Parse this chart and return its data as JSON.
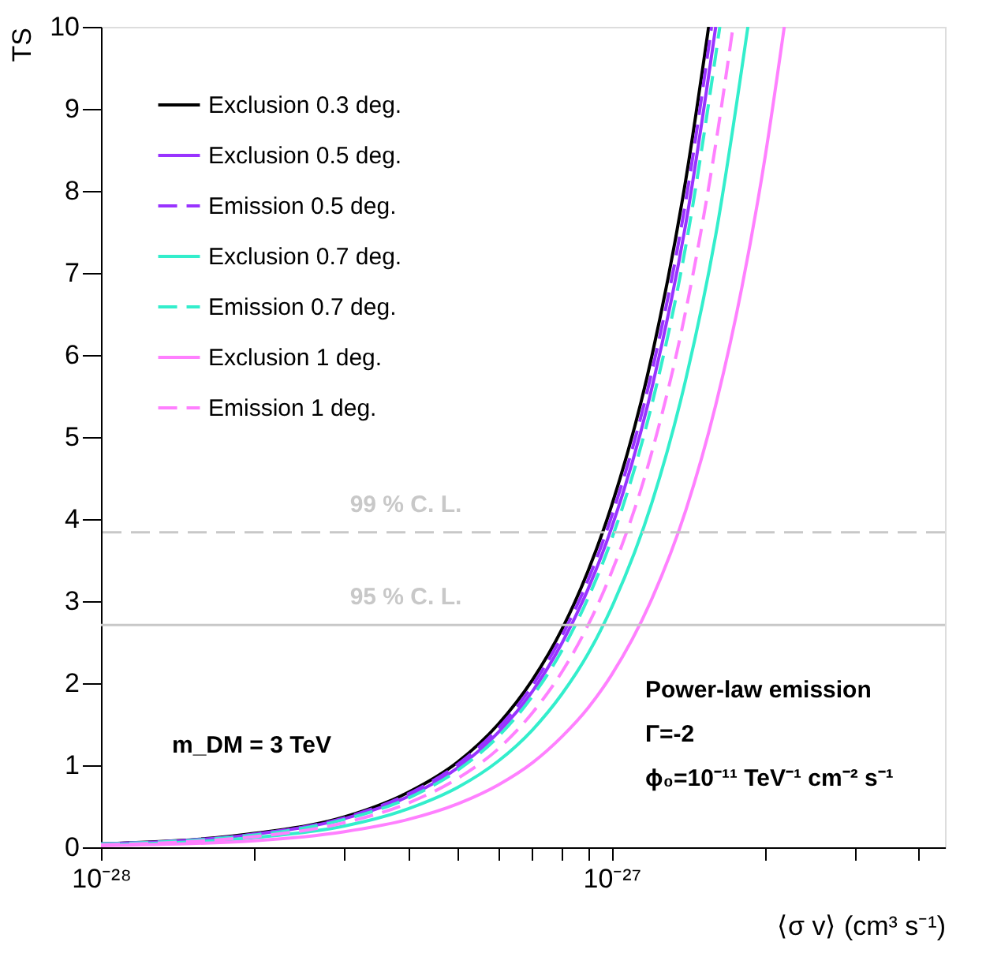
{
  "chart_data": {
    "type": "line",
    "xlabel": "⟨σ v⟩ (cm³ s⁻¹)",
    "ylabel": "TS",
    "log": "x",
    "grid": false,
    "legend": "top left",
    "xlim": [
      1e-28,
      4.5e-27
    ],
    "ylim": [
      0,
      10
    ],
    "xticks": [
      {
        "value": 1e-28,
        "label": "10⁻²⁸"
      },
      {
        "value": 2e-28,
        "label": null
      },
      {
        "value": 3e-28,
        "label": null
      },
      {
        "value": 4e-28,
        "label": null
      },
      {
        "value": 5e-28,
        "label": null
      },
      {
        "value": 6e-28,
        "label": null
      },
      {
        "value": 7e-28,
        "label": null
      },
      {
        "value": 8e-28,
        "label": null
      },
      {
        "value": 9e-28,
        "label": null
      },
      {
        "value": 1e-27,
        "label": "10⁻²⁷"
      },
      {
        "value": 2e-27,
        "label": null
      },
      {
        "value": 3e-27,
        "label": null
      },
      {
        "value": 4e-27,
        "label": null
      }
    ],
    "yticks": [
      0,
      1,
      2,
      3,
      4,
      5,
      6,
      7,
      8,
      9,
      10
    ],
    "series": [
      {
        "name": "Exclusion 0.3 deg.",
        "color": "#000000",
        "line_style": "solid",
        "x": [
          1e-28,
          2e-28,
          3e-28,
          4e-28,
          5e-28,
          6e-28,
          7e-28,
          8e-28,
          9e-28,
          1e-27,
          1.2e-27,
          1.4e-27,
          1.55e-27
        ],
        "values": [
          0.04,
          0.17,
          0.37,
          0.67,
          1.04,
          1.5,
          2.04,
          2.66,
          3.37,
          4.16,
          5.99,
          8.16,
          10
        ]
      },
      {
        "name": "Exclusion 0.5 deg.",
        "color": "#9933ff",
        "line_style": "solid",
        "x": [
          1e-28,
          2e-28,
          3e-28,
          4e-28,
          5e-28,
          6e-28,
          7e-28,
          8e-28,
          9e-28,
          1e-27,
          1.2e-27,
          1.4e-27,
          1.6e-27
        ],
        "values": [
          0.04,
          0.16,
          0.35,
          0.62,
          0.97,
          1.4,
          1.9,
          2.49,
          3.15,
          3.89,
          5.6,
          7.62,
          10
        ]
      },
      {
        "name": "Emission 0.5 deg.",
        "color": "#9933ff",
        "line_style": "dashed",
        "x": [
          1e-28,
          2e-28,
          3e-28,
          4e-28,
          5e-28,
          6e-28,
          7e-28,
          8e-28,
          9e-28,
          1e-27,
          1.2e-27,
          1.4e-27,
          1.57e-27
        ],
        "values": [
          0.04,
          0.16,
          0.36,
          0.65,
          1.01,
          1.45,
          1.97,
          2.58,
          3.26,
          4.03,
          5.8,
          7.9,
          10
        ]
      },
      {
        "name": "Exclusion 0.7 deg.",
        "color": "#33eecc",
        "line_style": "solid",
        "x": [
          1e-28,
          2e-28,
          3e-28,
          4e-28,
          5e-28,
          6e-28,
          7e-28,
          8e-28,
          9e-28,
          1e-27,
          1.2e-27,
          1.4e-27,
          1.6e-27,
          1.85e-27
        ],
        "values": [
          0.03,
          0.12,
          0.26,
          0.47,
          0.73,
          1.05,
          1.43,
          1.87,
          2.36,
          2.92,
          4.2,
          5.72,
          7.46,
          10
        ]
      },
      {
        "name": "Emission 0.7 deg.",
        "color": "#33eecc",
        "line_style": "dashed",
        "x": [
          1e-28,
          2e-28,
          3e-28,
          4e-28,
          5e-28,
          6e-28,
          7e-28,
          8e-28,
          9e-28,
          1e-27,
          1.2e-27,
          1.4e-27,
          1.63e-27
        ],
        "values": [
          0.04,
          0.15,
          0.34,
          0.6,
          0.94,
          1.35,
          1.84,
          2.4,
          3.04,
          3.75,
          5.4,
          7.35,
          10
        ]
      },
      {
        "name": "Exclusion 1 deg.",
        "color": "#ff80ff",
        "line_style": "solid",
        "x": [
          1e-28,
          2e-28,
          3e-28,
          4e-28,
          5e-28,
          6e-28,
          7e-28,
          8e-28,
          9e-28,
          1e-27,
          1.2e-27,
          1.4e-27,
          1.6e-27,
          1.8e-27,
          2e-27,
          2.18e-27
        ],
        "values": [
          0.02,
          0.08,
          0.19,
          0.34,
          0.53,
          0.76,
          1.03,
          1.35,
          1.7,
          2.1,
          3.03,
          4.12,
          5.39,
          6.82,
          8.42,
          10
        ]
      },
      {
        "name": "Emission 1 deg.",
        "color": "#ff80ff",
        "line_style": "dashed",
        "x": [
          1e-28,
          2e-28,
          3e-28,
          4e-28,
          5e-28,
          6e-28,
          7e-28,
          8e-28,
          9e-28,
          1e-27,
          1.2e-27,
          1.4e-27,
          1.6e-27,
          1.73e-27
        ],
        "values": [
          0.03,
          0.13,
          0.3,
          0.54,
          0.84,
          1.2,
          1.64,
          2.14,
          2.71,
          3.35,
          4.82,
          6.56,
          8.57,
          10
        ]
      }
    ],
    "ref_lines": [
      {
        "axis": "y",
        "value": 3.84,
        "label": "99 % C. L.",
        "color": "#c8c8c8",
        "line_style": "dashed"
      },
      {
        "axis": "y",
        "value": 2.71,
        "label": "95 % C. L.",
        "color": "#c8c8c8",
        "line_style": "solid"
      }
    ],
    "annotations": [
      "m_DM = 3 TeV",
      "Power-law emission",
      "Γ=-2",
      "ϕ₀=10⁻¹¹ TeV⁻¹ cm⁻² s⁻¹"
    ]
  }
}
